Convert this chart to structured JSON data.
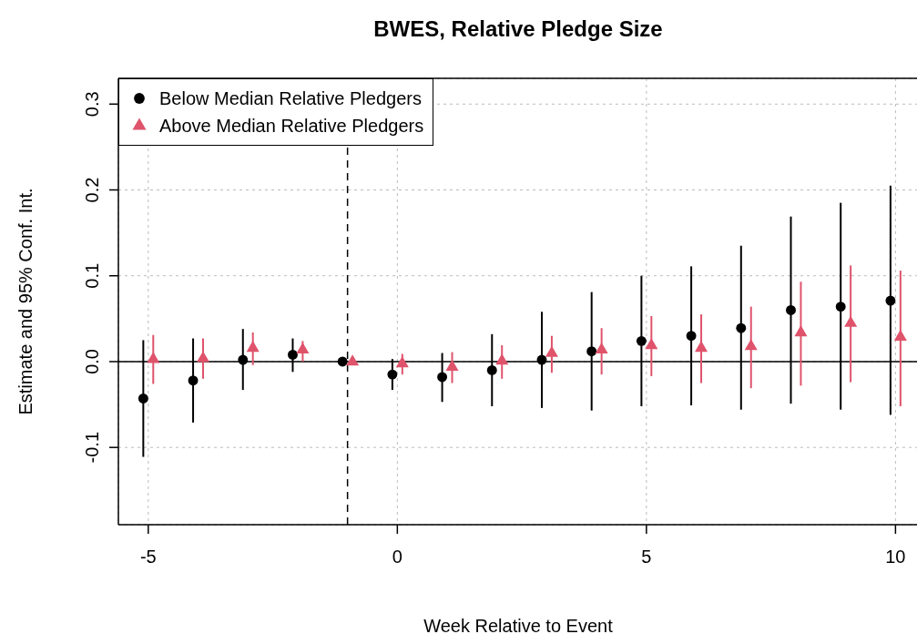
{
  "chart_data": {
    "type": "scatter",
    "title": "BWES, Relative Pledge Size",
    "xlabel": "Week Relative to Event",
    "ylabel": "Estimate and 95% Conf. Int.",
    "xlim": [
      -5.6,
      10.45
    ],
    "xticks": [
      -5,
      0,
      5,
      10
    ],
    "ylim": [
      -0.19,
      0.33
    ],
    "yticks": [
      {
        "value": -0.1,
        "label": "-0.1"
      },
      {
        "value": 0,
        "label": "0.0"
      },
      {
        "value": 0.1,
        "label": "0.1"
      },
      {
        "value": 0.2,
        "label": "0.2"
      },
      {
        "value": 0.3,
        "label": "0.3"
      }
    ],
    "grid": true,
    "legend": "top left",
    "ref_lines": [
      {
        "axis": "x",
        "value": -1,
        "line_style": "dashed",
        "color": "#000000"
      },
      {
        "axis": "y",
        "value": 0,
        "line_style": "solid",
        "color": "#000000"
      }
    ],
    "series": [
      {
        "name": "Below Median Relative Pledgers",
        "color": "#000000",
        "marker": "circle",
        "x": [
          -5.1,
          -4.1,
          -3.1,
          -2.1,
          -1.1,
          -0.1,
          0.9,
          1.9,
          2.9,
          3.9,
          4.9,
          5.9,
          6.9,
          7.9,
          8.9,
          9.9
        ],
        "values": [
          -0.043,
          -0.022,
          0.002,
          0.008,
          0,
          -0.015,
          -0.018,
          -0.01,
          0.002,
          0.012,
          0.024,
          0.03,
          0.039,
          0.06,
          0.064,
          0.071
        ],
        "errors": [
          [
            -0.111,
            0.025
          ],
          [
            -0.071,
            0.027
          ],
          [
            -0.033,
            0.038
          ],
          [
            -0.012,
            0.027
          ],
          null,
          [
            -0.033,
            0.003
          ],
          [
            -0.047,
            0.01
          ],
          [
            -0.052,
            0.032
          ],
          [
            -0.054,
            0.058
          ],
          [
            -0.057,
            0.081
          ],
          [
            -0.052,
            0.1
          ],
          [
            -0.051,
            0.111
          ],
          [
            -0.056,
            0.135
          ],
          [
            -0.049,
            0.169
          ],
          [
            -0.056,
            0.185
          ],
          [
            -0.062,
            0.205
          ]
        ]
      },
      {
        "name": "Above Median Relative Pledgers",
        "color": "#df536b",
        "marker": "triangle",
        "x": [
          -4.9,
          -3.9,
          -2.9,
          -1.9,
          -0.9,
          0.1,
          1.1,
          2.1,
          3.1,
          4.1,
          5.1,
          6.1,
          7.1,
          8.1,
          9.1,
          10.1
        ],
        "values": [
          0.003,
          0.004,
          0.016,
          0.014,
          0,
          -0.002,
          -0.006,
          0.001,
          0.01,
          0.014,
          0.019,
          0.016,
          0.018,
          0.034,
          0.045,
          0.029
        ],
        "errors": [
          [
            -0.026,
            0.031
          ],
          [
            -0.02,
            0.027
          ],
          [
            -0.004,
            0.034
          ],
          [
            0,
            0.024
          ],
          null,
          [
            -0.015,
            0.009
          ],
          [
            -0.025,
            0.011
          ],
          [
            -0.02,
            0.019
          ],
          [
            -0.013,
            0.03
          ],
          [
            -0.015,
            0.039
          ],
          [
            -0.017,
            0.053
          ],
          [
            -0.025,
            0.055
          ],
          [
            -0.031,
            0.064
          ],
          [
            -0.028,
            0.093
          ],
          [
            -0.024,
            0.112
          ],
          [
            -0.052,
            0.106
          ]
        ]
      }
    ]
  }
}
